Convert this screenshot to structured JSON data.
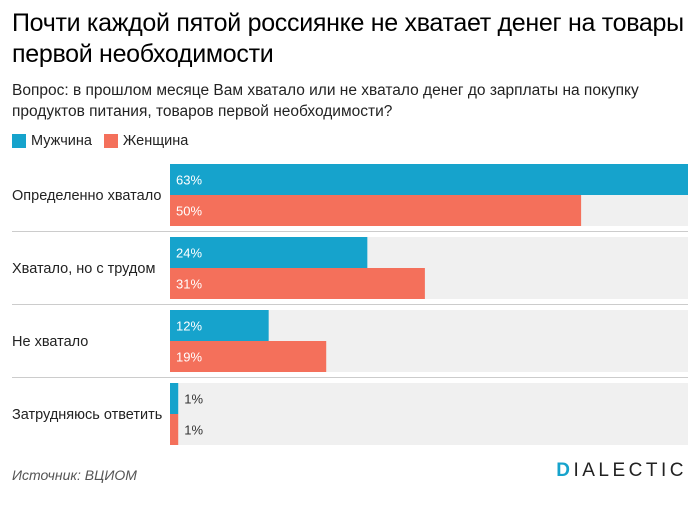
{
  "title": "Почти каждой пятой россиянке не хватает денег на товары первой необходимости",
  "subtitle": "Вопрос: в прошлом месяце Вам хватало или не хватало денег до зарплаты на покупку продуктов питания, товаров первой необходимости?",
  "source": "Источник: ВЦИОМ",
  "brand": {
    "first": "D",
    "rest": "IALECTIC"
  },
  "colors": {
    "male": "#16a3cc",
    "female": "#f4705b",
    "track": "#f0f0f0",
    "divider": "#cccccc"
  },
  "chart_data": {
    "type": "bar",
    "orientation": "horizontal",
    "categories": [
      "Определенно хватало",
      "Хватало, но с трудом",
      "Не хватало",
      "Затрудняюсь ответить"
    ],
    "series": [
      {
        "name": "Мужчина",
        "values": [
          63,
          24,
          12,
          1
        ],
        "labels": [
          "63%",
          "24%",
          "12%",
          "1%"
        ]
      },
      {
        "name": "Женщина",
        "values": [
          50,
          31,
          19,
          1
        ],
        "labels": [
          "50%",
          "31%",
          "19%",
          "1%"
        ]
      }
    ],
    "xlim": [
      0,
      63
    ],
    "legend": "top-left",
    "grid": false
  }
}
